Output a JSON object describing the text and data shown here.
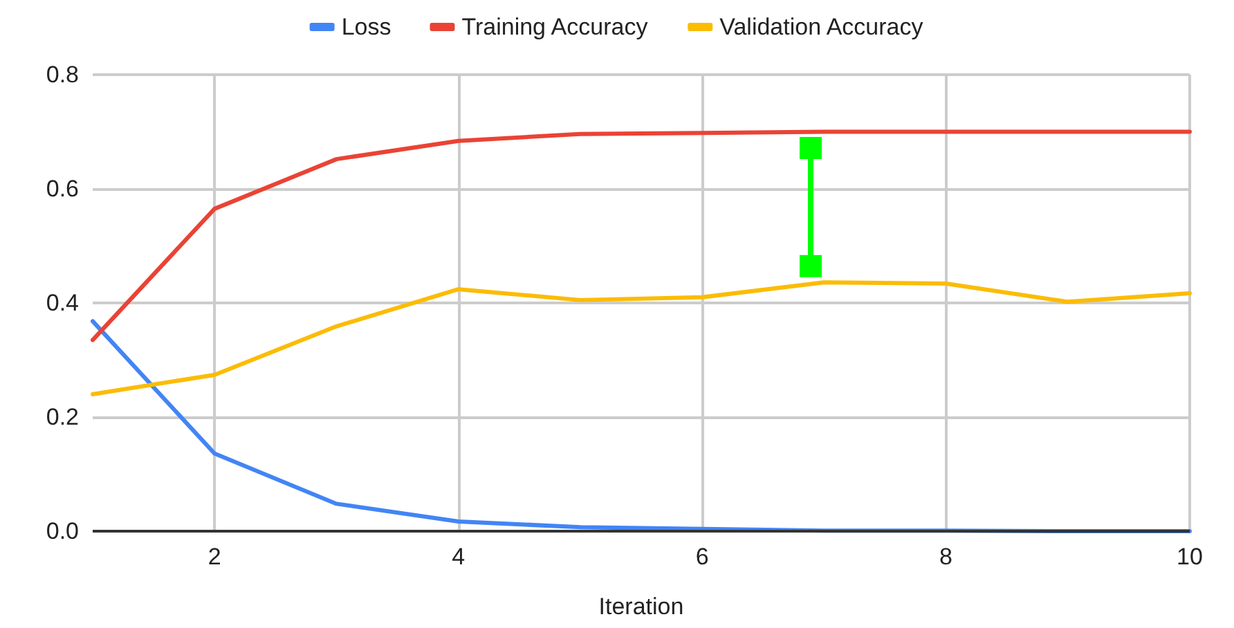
{
  "chart_data": {
    "type": "line",
    "xlabel": "Iteration",
    "x": [
      1,
      2,
      3,
      4,
      5,
      6,
      7,
      8,
      9,
      10
    ],
    "series": [
      {
        "name": "Loss",
        "color": "#4285f4",
        "values": [
          0.368,
          0.136,
          0.048,
          0.017,
          0.007,
          0.004,
          0.001,
          0.001,
          0,
          0
        ]
      },
      {
        "name": "Training Accuracy",
        "color": "#ea4335",
        "values": [
          0.335,
          0.565,
          0.652,
          0.684,
          0.696,
          0.698,
          0.7,
          0.7,
          0.7,
          0.7
        ]
      },
      {
        "name": "Validation Accuracy",
        "color": "#fbbc04",
        "values": [
          0.24,
          0.274,
          0.359,
          0.424,
          0.405,
          0.41,
          0.436,
          0.434,
          0.402,
          0.417
        ]
      }
    ],
    "xlim": [
      1,
      10
    ],
    "xticks": [
      2,
      4,
      6,
      8,
      10
    ],
    "ylim": [
      0,
      0.8
    ],
    "yticks": [
      {
        "value": 0,
        "label": "0.0"
      },
      0.2,
      0.4,
      0.6,
      0.8
    ],
    "grid": true,
    "legend": "top",
    "marker": "none",
    "line_style": "solid"
  }
}
